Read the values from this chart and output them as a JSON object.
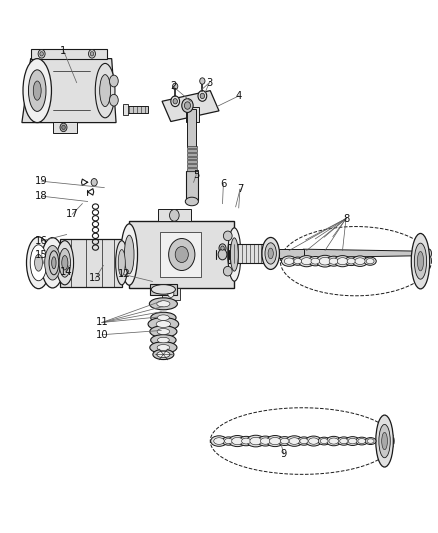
{
  "bg_color": "#ffffff",
  "line_color": "#1a1a1a",
  "lw": 1.0,
  "figsize": [
    4.38,
    5.33
  ],
  "dpi": 100,
  "label_positions": {
    "1": [
      0.145,
      0.905,
      0.175,
      0.855
    ],
    "2": [
      0.395,
      0.838,
      0.435,
      0.818
    ],
    "3": [
      0.478,
      0.845,
      0.47,
      0.825
    ],
    "4": [
      0.545,
      0.82,
      0.505,
      0.808
    ],
    "5": [
      0.448,
      0.672,
      0.44,
      0.655
    ],
    "6": [
      0.51,
      0.655,
      0.505,
      0.627
    ],
    "7": [
      0.548,
      0.645,
      0.54,
      0.62
    ],
    "8": [
      0.79,
      0.59,
      0.76,
      0.555
    ],
    "9": [
      0.648,
      0.148,
      0.63,
      0.168
    ],
    "10": [
      0.233,
      0.372,
      0.355,
      0.378
    ],
    "11": [
      0.233,
      0.395,
      0.35,
      0.405
    ],
    "12": [
      0.283,
      0.485,
      0.345,
      0.478
    ],
    "13": [
      0.218,
      0.478,
      0.235,
      0.49
    ],
    "14": [
      0.15,
      0.49,
      0.16,
      0.498
    ],
    "15": [
      0.095,
      0.522,
      0.102,
      0.512
    ],
    "16": [
      0.095,
      0.548,
      0.155,
      0.558
    ],
    "17": [
      0.165,
      0.598,
      0.188,
      0.618
    ],
    "18": [
      0.095,
      0.632,
      0.2,
      0.628
    ],
    "19": [
      0.095,
      0.66,
      0.235,
      0.655
    ]
  }
}
